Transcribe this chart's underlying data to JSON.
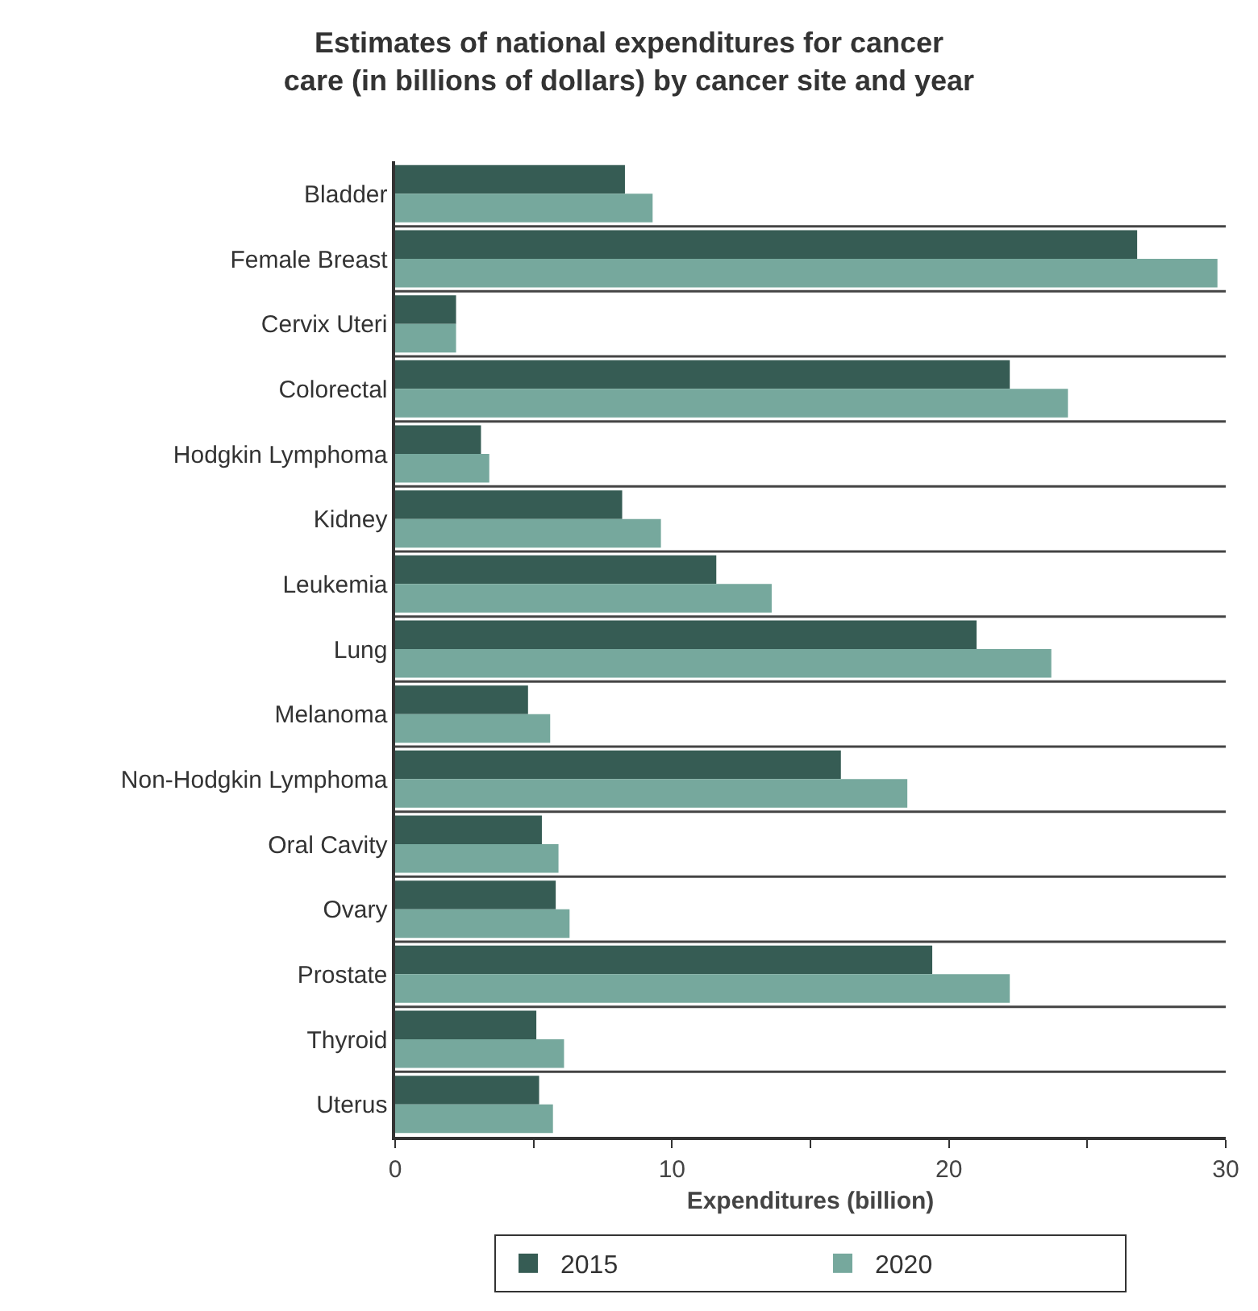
{
  "chart_data": {
    "type": "bar",
    "orientation": "horizontal",
    "title": "Estimates of national expenditures for cancer\ncare (in billions of dollars) by cancer site and year",
    "xlabel": "Expenditures (billion)",
    "categories": [
      "Bladder",
      "Female Breast",
      "Cervix Uteri",
      "Colorectal",
      "Hodgkin Lymphoma",
      "Kidney",
      "Leukemia",
      "Lung",
      "Melanoma",
      "Non-Hodgkin Lymphoma",
      "Oral Cavity",
      "Ovary",
      "Prostate",
      "Thyroid",
      "Uterus"
    ],
    "series": [
      {
        "name": "2015",
        "color": "#365c54",
        "values": [
          8.3,
          26.8,
          2.2,
          22.2,
          3.1,
          8.2,
          11.6,
          21.0,
          4.8,
          16.1,
          5.3,
          5.8,
          19.4,
          5.1,
          5.2
        ]
      },
      {
        "name": "2020",
        "color": "#76a89d",
        "values": [
          9.3,
          29.7,
          2.2,
          24.3,
          3.4,
          9.6,
          13.6,
          23.7,
          5.6,
          18.5,
          5.9,
          6.3,
          22.2,
          6.1,
          5.7
        ]
      }
    ],
    "xlim": [
      0,
      30
    ],
    "xticks": [
      0,
      {
        "value": 5,
        "label": null
      },
      10,
      {
        "value": 15,
        "label": null
      },
      20,
      {
        "value": 25,
        "label": null
      },
      30
    ],
    "grid": "y",
    "legend": "bottom"
  }
}
